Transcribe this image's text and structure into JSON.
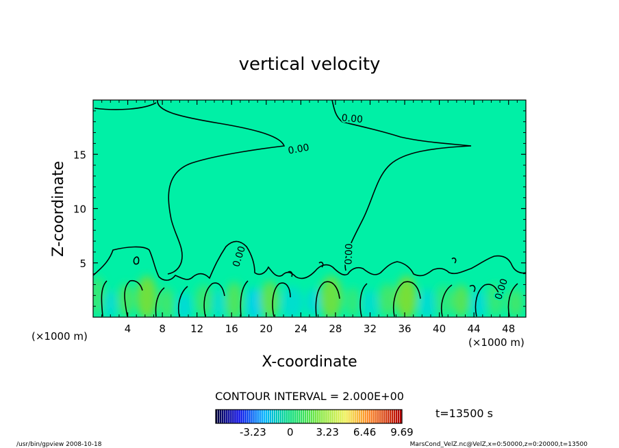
{
  "chart_data": {
    "type": "heatmap",
    "title": "vertical velocity",
    "xlabel": "X-coordinate",
    "ylabel": "Z-coordinate",
    "x_unit": "(×1000 m)",
    "x_unit_right": "(×1000 m)",
    "xlim": [
      0,
      50
    ],
    "ylim": [
      0,
      20
    ],
    "x_ticks": [
      4,
      8,
      12,
      16,
      20,
      24,
      28,
      32,
      36,
      40,
      44,
      48
    ],
    "y_ticks": [
      5,
      10,
      15
    ],
    "x_tick_labels": [
      "4",
      "8",
      "12",
      "16",
      "20",
      "24",
      "28",
      "32",
      "36",
      "40",
      "44",
      "48"
    ],
    "y_tick_labels": [
      "5",
      "10",
      "15"
    ],
    "contour_interval": "CONTOUR INTERVAL = 2.000E+00",
    "time_label": "t=13500  s",
    "contour_labels": [
      {
        "text": "0.00",
        "x": 23.8,
        "y": 15.2,
        "rot": -10
      },
      {
        "text": "0.00",
        "x": 29.9,
        "y": 18.0,
        "rot": 5
      },
      {
        "text": "0.00",
        "x": 17.2,
        "y": 5.5,
        "rot": -72
      },
      {
        "text": "0.00",
        "x": 29.9,
        "y": 5.8,
        "rot": -88
      },
      {
        "text": "0.00",
        "x": 47.5,
        "y": 2.5,
        "rot": -72
      }
    ],
    "colorbar": {
      "range": [
        -6.46,
        9.69
      ],
      "tick_labels": [
        "-3.23",
        "0",
        "3.23",
        "6.46",
        "9.69"
      ],
      "tick_values": [
        -3.23,
        0,
        3.23,
        6.46,
        9.69
      ]
    },
    "cells": [
      {
        "x": 0.5,
        "z": 2.0,
        "w": 1.8,
        "h": 3.5,
        "v": 1.5
      },
      {
        "x": 2.0,
        "z": 1.2,
        "w": 1.5,
        "h": 2.5,
        "v": -1.4
      },
      {
        "x": 3.8,
        "z": 1.6,
        "w": 1.8,
        "h": 3.0,
        "v": 2.0
      },
      {
        "x": 6.2,
        "z": 1.8,
        "w": 2.4,
        "h": 4.0,
        "v": 3.2
      },
      {
        "x": 8.5,
        "z": 1.2,
        "w": 1.6,
        "h": 3.0,
        "v": 1.8
      },
      {
        "x": 10.5,
        "z": 1.0,
        "w": 1.8,
        "h": 2.5,
        "v": -1.6
      },
      {
        "x": 12.8,
        "z": 1.5,
        "w": 2.0,
        "h": 3.0,
        "v": 1.6
      },
      {
        "x": 14.5,
        "z": 1.2,
        "w": 1.6,
        "h": 2.6,
        "v": -1.2
      },
      {
        "x": 16.3,
        "z": 1.5,
        "w": 2.0,
        "h": 3.5,
        "v": 2.2
      },
      {
        "x": 18.6,
        "z": 1.2,
        "w": 1.8,
        "h": 3.0,
        "v": -2.2
      },
      {
        "x": 20.4,
        "z": 1.6,
        "w": 2.2,
        "h": 3.5,
        "v": 2.6
      },
      {
        "x": 23.0,
        "z": 1.3,
        "w": 2.6,
        "h": 3.0,
        "v": -1.3
      },
      {
        "x": 25.5,
        "z": 1.4,
        "w": 1.4,
        "h": 2.5,
        "v": -1.8
      },
      {
        "x": 27.5,
        "z": 1.8,
        "w": 2.6,
        "h": 4.0,
        "v": 3.0
      },
      {
        "x": 30.0,
        "z": 1.4,
        "w": 1.6,
        "h": 2.8,
        "v": 1.4
      },
      {
        "x": 32.0,
        "z": 1.2,
        "w": 2.0,
        "h": 2.6,
        "v": -1.2
      },
      {
        "x": 34.0,
        "z": 1.6,
        "w": 2.0,
        "h": 3.0,
        "v": 1.8
      },
      {
        "x": 36.2,
        "z": 1.8,
        "w": 2.4,
        "h": 4.0,
        "v": 3.4
      },
      {
        "x": 38.6,
        "z": 1.2,
        "w": 2.0,
        "h": 2.8,
        "v": -1.4
      },
      {
        "x": 40.5,
        "z": 1.5,
        "w": 2.0,
        "h": 3.0,
        "v": 1.2
      },
      {
        "x": 42.5,
        "z": 1.5,
        "w": 2.0,
        "h": 3.0,
        "v": 2.4
      },
      {
        "x": 44.5,
        "z": 1.2,
        "w": 1.8,
        "h": 2.6,
        "v": -1.5
      },
      {
        "x": 46.5,
        "z": 1.6,
        "w": 2.0,
        "h": 3.0,
        "v": 1.4
      },
      {
        "x": 48.8,
        "z": 1.3,
        "w": 1.8,
        "h": 2.6,
        "v": 1.8
      }
    ]
  },
  "footer": {
    "left": "/usr/bin/gpview   2008-10-18",
    "right": "MarsCond_VelZ.nc@VelZ,x=0:50000,z=0:20000,t=13500"
  },
  "colors": {
    "background_field": "#00f0a6",
    "contour_line": "#000000"
  }
}
